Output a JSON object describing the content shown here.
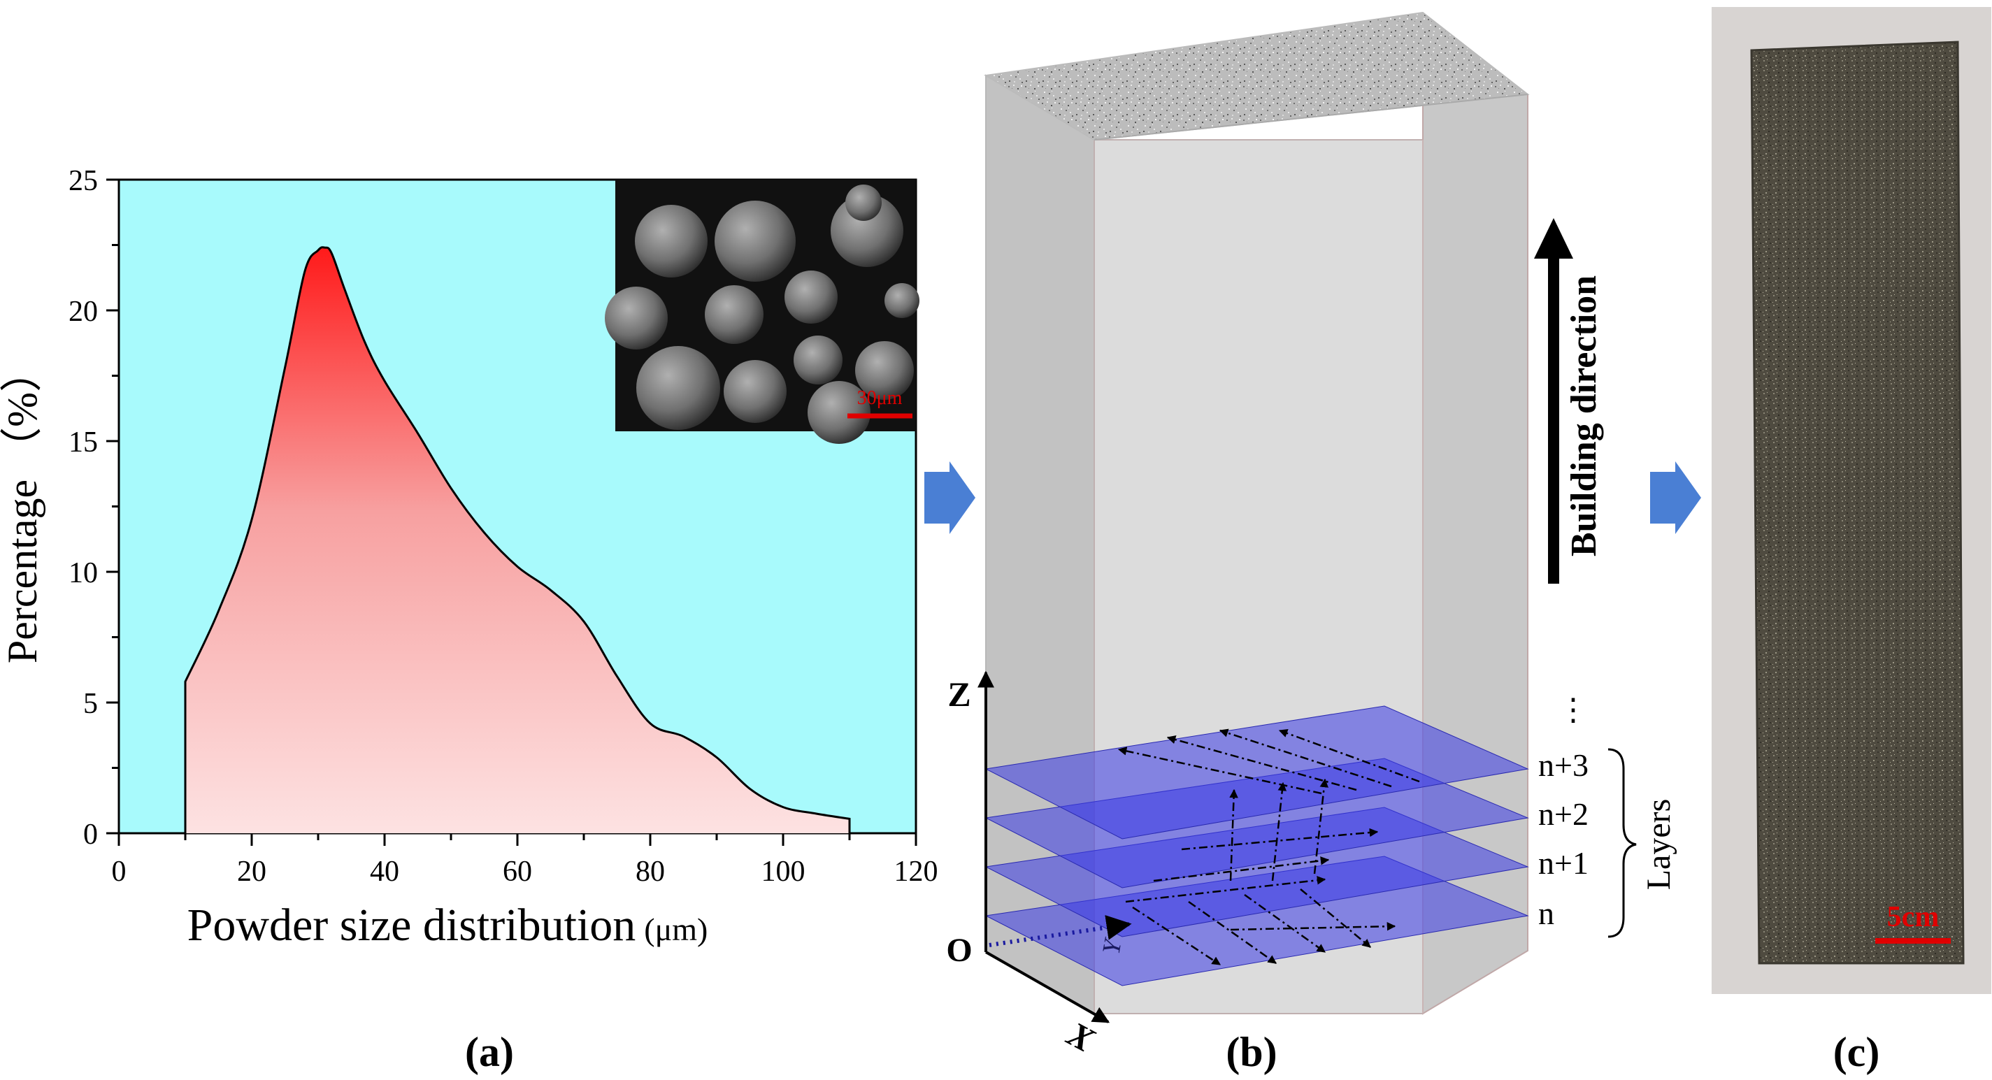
{
  "panel_a": {
    "caption": "(a)",
    "xlabel_main": "Powder size distribution",
    "xlabel_unit": "(μm)",
    "ylabel": "Percentage （%）",
    "inset_scale_label": "30μm"
  },
  "panel_b": {
    "caption": "(b)",
    "building_direction_label": "Building direction",
    "axis_z": "Z",
    "axis_x": "X",
    "axis_y": "Y",
    "origin": "O",
    "ellipsis": "⋮",
    "layer_labels": [
      "n+3",
      "n+2",
      "n+1",
      "n"
    ],
    "layers_label": "Layers"
  },
  "panel_c": {
    "caption": "(c)",
    "scale_label": "5cm"
  },
  "colors": {
    "plot_background": "#a8fafc",
    "curve_fill_top": "#ff1a1a",
    "curve_fill_bottom": "#fde0e0",
    "layer_fill": "#3a3ae6",
    "arrow_blue": "#4a7fd4",
    "scale_bar_red": "#e00000"
  },
  "chart_data": {
    "type": "area",
    "title": "",
    "xlabel": "Powder size distribution (μm)",
    "ylabel": "Percentage （%）",
    "xlim": [
      0,
      120
    ],
    "ylim": [
      0,
      25
    ],
    "xticks": [
      0,
      20,
      40,
      60,
      80,
      100,
      120
    ],
    "yticks": [
      0,
      5,
      10,
      15,
      20,
      25
    ],
    "grid": false,
    "legend": "none",
    "x": [
      10,
      10,
      15,
      20,
      25,
      28,
      30,
      31,
      32,
      34,
      37,
      40,
      45,
      50,
      55,
      60,
      65,
      70,
      75,
      80,
      85,
      90,
      95,
      100,
      105,
      110,
      110
    ],
    "y": [
      0,
      5.8,
      8.5,
      12,
      17.8,
      21.5,
      22.3,
      22.4,
      22.2,
      20.8,
      18.8,
      17.3,
      15.3,
      13.2,
      11.5,
      10.2,
      9.3,
      8.1,
      6,
      4.2,
      3.7,
      2.9,
      1.7,
      1.0,
      0.75,
      0.55,
      0
    ]
  }
}
